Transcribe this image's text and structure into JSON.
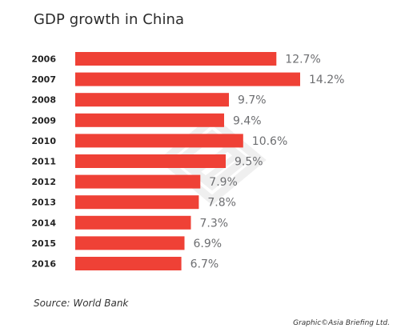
{
  "credit": "Graphic©Asia Briefing Ltd.",
  "source": "Source: World Bank",
  "colors": {
    "bar": "#ef4136",
    "year_label": "#222222",
    "value_label": "#6d6e71",
    "title": "#2b2b2b"
  },
  "chart_data": {
    "type": "bar",
    "orientation": "horizontal",
    "title": "GDP growth in China",
    "xlabel": "",
    "ylabel": "",
    "value_suffix": "%",
    "categories": [
      "2006",
      "2007",
      "2008",
      "2009",
      "2010",
      "2011",
      "2012",
      "2013",
      "2014",
      "2015",
      "2016"
    ],
    "values": [
      12.7,
      14.2,
      9.7,
      9.4,
      10.6,
      9.5,
      7.9,
      7.8,
      7.3,
      6.9,
      6.7
    ],
    "value_labels": [
      "12.7%",
      "14.2%",
      "9.7%",
      "9.4%",
      "10.6%",
      "9.5%",
      "7.9%",
      "7.8%",
      "7.3%",
      "6.9%",
      "6.7%"
    ],
    "xlim": [
      0,
      14.2
    ],
    "grid": false,
    "legend": "none"
  }
}
